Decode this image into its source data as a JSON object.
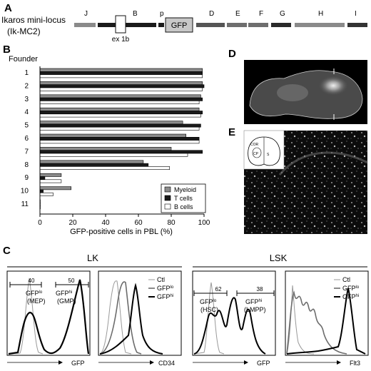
{
  "panel_labels": {
    "a": "A",
    "b": "B",
    "c": "C",
    "d": "D",
    "e": "E"
  },
  "panel_a": {
    "title_line1": "Ikaros mini-locus",
    "title_line2": "(Ik-MC2)",
    "segments": [
      "J",
      "B",
      "p",
      "D",
      "E",
      "F",
      "G",
      "H",
      "I"
    ],
    "gfp_box": "GFP",
    "exon_label": "ex 1b"
  },
  "panel_b": {
    "founder_label": "Founder",
    "chart_data": {
      "type": "bar",
      "orientation": "horizontal",
      "categories": [
        "1",
        "2",
        "3",
        "4",
        "5",
        "6",
        "7",
        "8",
        "9",
        "10",
        "11"
      ],
      "series": [
        {
          "name": "Myeloid",
          "color": "#8c8c8c",
          "values": [
            99,
            99,
            98,
            97,
            87,
            89,
            80,
            63,
            13,
            19,
            0
          ]
        },
        {
          "name": "T cells",
          "color": "#1a1a1a",
          "values": [
            99,
            100,
            99,
            99,
            98,
            97,
            99,
            66,
            3,
            2,
            0
          ]
        },
        {
          "name": "B cells",
          "color": "#ffffff",
          "values": [
            99,
            99,
            97,
            98,
            97,
            97,
            90,
            79,
            13,
            8,
            0
          ]
        }
      ],
      "xlabel": "GFP-positive cells in PBL (%)",
      "xticks": [
        "0",
        "20",
        "40",
        "60",
        "80",
        "100"
      ],
      "xlim": [
        0,
        100
      ]
    }
  },
  "panel_c": {
    "group_lk": "LK",
    "group_lsk": "LSK",
    "legend": {
      "ctl": "Ctl",
      "gfplo": "GFP",
      "gfplo_sup": "lo",
      "gfphi": "GFP",
      "gfphi_sup": "hi"
    },
    "plot1": {
      "xlabel": "GFP",
      "gate_lo_value": "40",
      "gate_hi_value": "50",
      "lo_label": "GFP",
      "lo_sup": "lo",
      "lo_sub": "(MEP)",
      "hi_label": "GFP",
      "hi_sup": "hi",
      "hi_sub": "(GMP)"
    },
    "plot2": {
      "xlabel": "CD34"
    },
    "plot3": {
      "xlabel": "GFP",
      "gate_lo_value": "62",
      "gate_hi_value": "38",
      "lo_label": "GFP",
      "lo_sup": "lo",
      "lo_sub": "(HSC)",
      "hi_label": "GFP",
      "hi_sup": "hi",
      "hi_sub": "(LMPP)"
    },
    "plot4": {
      "xlabel": "Flt3"
    }
  },
  "panel_e": {
    "inset_labels": [
      "COR",
      "CP",
      "S"
    ]
  }
}
